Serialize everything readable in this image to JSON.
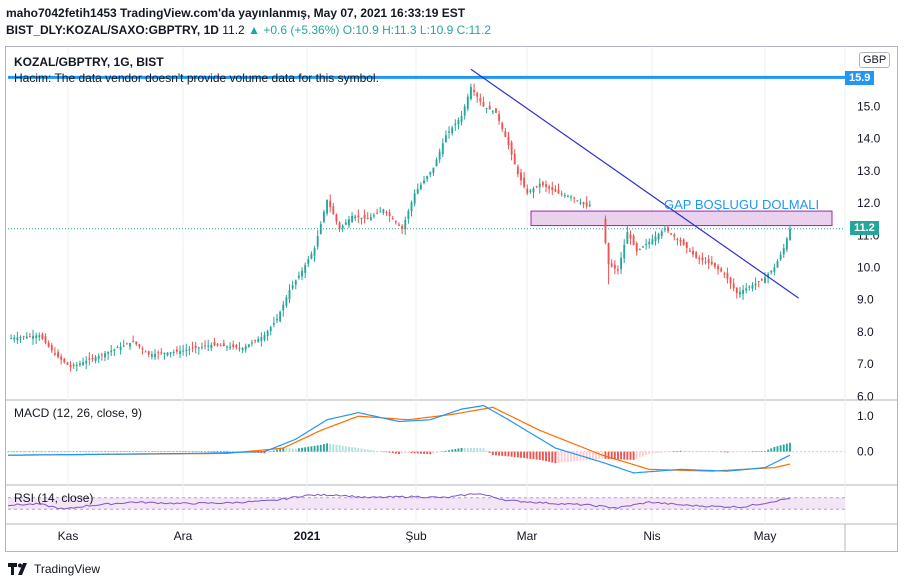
{
  "header": {
    "line1": "maho7042fetih1453 TradingView.com'da yayınlanmış, May 07, 2021 16:33:19 EST",
    "symbol_line": "BIST_DLY:KOZAL/SAXO:GBPTRY, 1D",
    "last": "11.2",
    "change": "+0.6 (+5.36%)",
    "ohlc": [
      "O:10.9",
      "H:11.3",
      "L:10.9",
      "C:11.2"
    ]
  },
  "legend": {
    "title": "KOZAL/GBPTRY, 1G, BIST",
    "volume_note": "Hacim: The data vendor doesn't provide volume data for this symbol.",
    "currency": "GBP"
  },
  "annotation": "GAP BOŞLUGU DOLMALI",
  "price_labels": {
    "resistance": "15.9",
    "last": "11.2"
  },
  "macd_label": "MACD (12, 26, close, 9)",
  "rsi_label": "RSI (14, close)",
  "footer": "TradingView",
  "colors": {
    "up": "#26a69a",
    "down": "#ef5350",
    "resistance": "#2196f3",
    "trend": "#3030d0",
    "zone_fill": "#e1bee7",
    "zone_stroke": "#9c27b0",
    "macd": "#2196f3",
    "signal": "#ff6d00",
    "rsi": "#7e57c2"
  },
  "chart_data": [
    {
      "type": "candlestick",
      "title": "KOZAL/GBPTRY, 1G, BIST",
      "x_tick_labels": [
        "Kas",
        "Ara",
        "2021",
        "Şub",
        "Mar",
        "Nis",
        "May"
      ],
      "y_ticks": [
        6.0,
        7.0,
        8.0,
        9.0,
        10.0,
        11.0,
        12.0,
        13.0,
        14.0,
        15.0
      ],
      "ylim": [
        5.95,
        16.5
      ],
      "lines": {
        "resistance": 15.9,
        "last_price": 11.2
      },
      "gap_zone": {
        "low": 11.3,
        "high": 11.75,
        "label": "GAP BOŞLUGU DOLMALI"
      },
      "trendline": {
        "from": {
          "index": 148,
          "value": 16.15
        },
        "to": {
          "index": 247,
          "value": 9.05
        }
      },
      "close_anchors": [
        [
          0,
          7.8
        ],
        [
          10,
          7.9
        ],
        [
          15,
          7.3
        ],
        [
          20,
          6.9
        ],
        [
          25,
          7.1
        ],
        [
          30,
          7.3
        ],
        [
          35,
          7.5
        ],
        [
          40,
          7.7
        ],
        [
          45,
          7.3
        ],
        [
          55,
          7.4
        ],
        [
          65,
          7.6
        ],
        [
          75,
          7.5
        ],
        [
          82,
          7.9
        ],
        [
          86,
          8.4
        ],
        [
          90,
          9.3
        ],
        [
          94,
          9.9
        ],
        [
          98,
          10.6
        ],
        [
          102,
          12.1
        ],
        [
          106,
          11.2
        ],
        [
          110,
          11.6
        ],
        [
          115,
          11.5
        ],
        [
          120,
          11.8
        ],
        [
          126,
          11.2
        ],
        [
          130,
          12.3
        ],
        [
          136,
          13.1
        ],
        [
          140,
          14.1
        ],
        [
          145,
          14.7
        ],
        [
          148,
          15.6
        ],
        [
          152,
          15.0
        ],
        [
          156,
          14.8
        ],
        [
          160,
          13.8
        ],
        [
          163,
          12.9
        ],
        [
          166,
          12.3
        ],
        [
          170,
          12.6
        ],
        [
          176,
          12.3
        ],
        [
          180,
          12.2
        ],
        [
          185,
          11.9
        ],
        [
          189,
          12.1
        ],
        [
          192,
          10.1
        ],
        [
          195,
          9.9
        ],
        [
          198,
          11.1
        ],
        [
          201,
          10.5
        ],
        [
          205,
          10.8
        ],
        [
          210,
          11.2
        ],
        [
          215,
          10.8
        ],
        [
          220,
          10.3
        ],
        [
          225,
          10.1
        ],
        [
          229,
          9.8
        ],
        [
          233,
          9.2
        ],
        [
          237,
          9.4
        ],
        [
          241,
          9.6
        ],
        [
          245,
          10.0
        ],
        [
          248,
          10.6
        ],
        [
          250,
          11.2
        ]
      ],
      "approx_candles": 251
    },
    {
      "type": "line",
      "title": "MACD (12, 26, close, 9)",
      "y_ticks": [
        0.0,
        1.0
      ],
      "ylim": [
        -0.8,
        1.4
      ],
      "macd_anchors": [
        [
          0,
          -0.1
        ],
        [
          60,
          -0.05
        ],
        [
          82,
          0.0
        ],
        [
          92,
          0.35
        ],
        [
          102,
          0.9
        ],
        [
          112,
          1.1
        ],
        [
          125,
          0.85
        ],
        [
          135,
          0.9
        ],
        [
          145,
          1.2
        ],
        [
          152,
          1.3
        ],
        [
          160,
          0.9
        ],
        [
          175,
          0.1
        ],
        [
          190,
          -0.3
        ],
        [
          200,
          -0.6
        ],
        [
          215,
          -0.5
        ],
        [
          230,
          -0.55
        ],
        [
          242,
          -0.45
        ],
        [
          250,
          -0.1
        ]
      ],
      "signal_anchors": [
        [
          0,
          -0.1
        ],
        [
          70,
          -0.05
        ],
        [
          88,
          0.1
        ],
        [
          100,
          0.6
        ],
        [
          112,
          1.0
        ],
        [
          128,
          0.9
        ],
        [
          142,
          1.05
        ],
        [
          155,
          1.25
        ],
        [
          170,
          0.6
        ],
        [
          190,
          -0.1
        ],
        [
          205,
          -0.5
        ],
        [
          225,
          -0.55
        ],
        [
          245,
          -0.45
        ],
        [
          250,
          -0.35
        ]
      ]
    },
    {
      "type": "line",
      "title": "RSI (14, close)",
      "band": [
        30,
        70
      ],
      "rsi_anchors": [
        [
          0,
          45
        ],
        [
          10,
          48
        ],
        [
          18,
          30
        ],
        [
          25,
          42
        ],
        [
          40,
          55
        ],
        [
          55,
          50
        ],
        [
          70,
          52
        ],
        [
          85,
          60
        ],
        [
          95,
          78
        ],
        [
          105,
          80
        ],
        [
          115,
          70
        ],
        [
          130,
          74
        ],
        [
          140,
          70
        ],
        [
          150,
          85
        ],
        [
          160,
          60
        ],
        [
          175,
          50
        ],
        [
          185,
          45
        ],
        [
          195,
          35
        ],
        [
          205,
          55
        ],
        [
          215,
          45
        ],
        [
          225,
          40
        ],
        [
          235,
          38
        ],
        [
          245,
          58
        ],
        [
          250,
          68
        ]
      ]
    }
  ]
}
